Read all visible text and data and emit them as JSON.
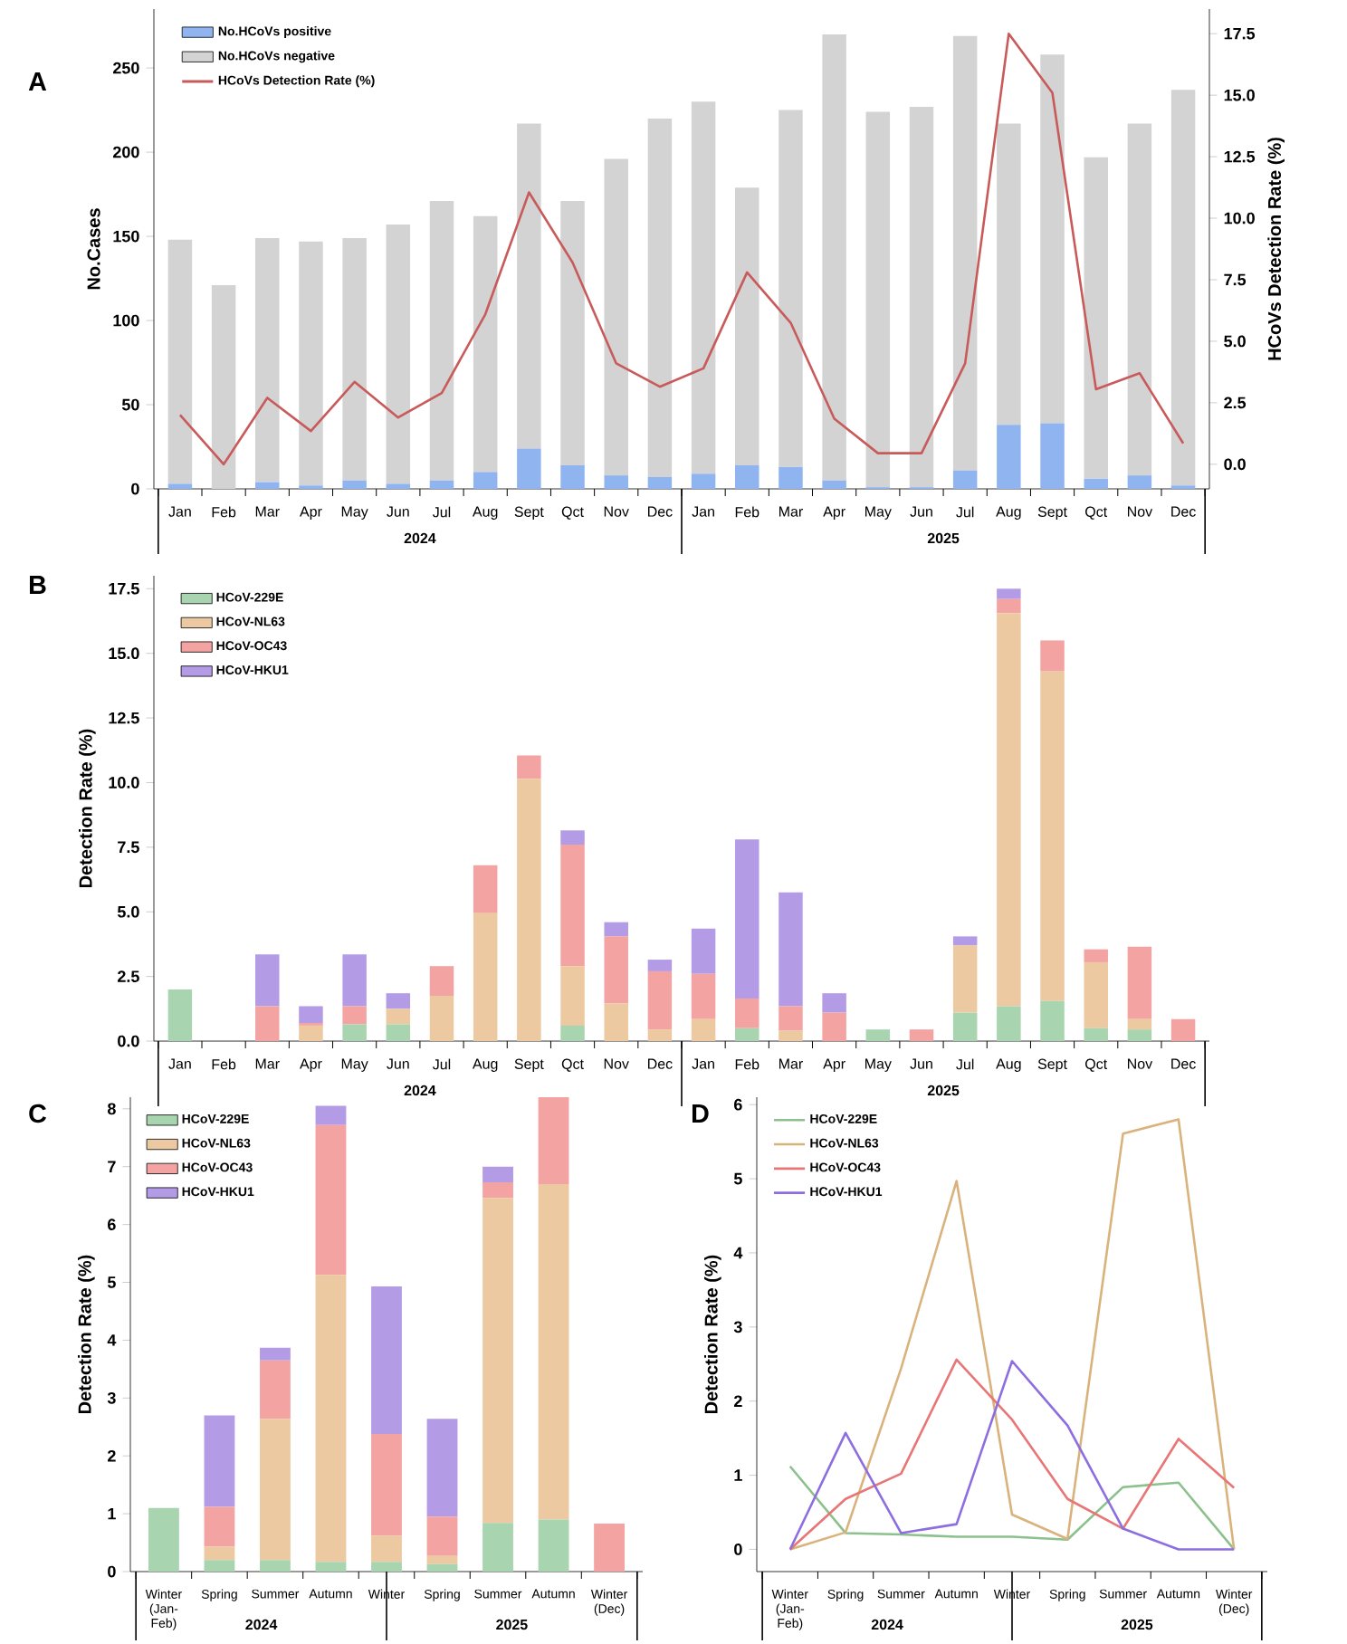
{
  "chart_data": [
    {
      "type": "bar",
      "title": "A",
      "ylabel": "No.Cases",
      "y2label": "HCoVs Detection Rate (%)",
      "stacked": true,
      "legend": "top left",
      "categories": [
        "Jan",
        "Feb",
        "Mar",
        "Apr",
        "May",
        "Jun",
        "Jul",
        "Aug",
        "Sept",
        "Qct",
        "Nov",
        "Dec",
        "Jan",
        "Feb",
        "Mar",
        "Apr",
        "May",
        "Jun",
        "Jul",
        "Aug",
        "Sept",
        "Qct",
        "Nov",
        "Dec"
      ],
      "series": [
        {
          "name": "No.HCoVs positive",
          "color": "#8fb4f0",
          "values": [
            3,
            0,
            4,
            2,
            5,
            3,
            5,
            10,
            24,
            14,
            8,
            7,
            9,
            14,
            13,
            5,
            1,
            1,
            11,
            38,
            39,
            6,
            8,
            2
          ]
        },
        {
          "name": "No.HCoVs negative",
          "color": "#d3d3d3",
          "values": [
            145,
            121,
            145,
            145,
            144,
            154,
            166,
            152,
            193,
            157,
            188,
            213,
            221,
            165,
            212,
            265,
            223,
            226,
            258,
            179,
            219,
            191,
            209,
            235
          ]
        },
        {
          "name": "HCoVs Detection Rate (%)",
          "type": "line",
          "axis": "y2",
          "color": "#c85a5a",
          "values": [
            2.0,
            0.0,
            2.7,
            1.35,
            3.35,
            1.9,
            2.9,
            6.1,
            11.05,
            8.2,
            4.1,
            3.15,
            3.9,
            7.8,
            5.75,
            1.85,
            0.45,
            0.45,
            4.1,
            17.5,
            15.1,
            3.05,
            3.7,
            0.85
          ]
        }
      ],
      "ylim": [
        0,
        285
      ],
      "yticks": [
        0,
        50,
        100,
        150,
        200,
        250
      ],
      "y2lim": [
        -1,
        18.5
      ],
      "y2ticks": [
        {
          "value": 0,
          "label": "0.0"
        },
        2.5,
        {
          "value": 5,
          "label": "5.0"
        },
        7.5,
        {
          "value": 10,
          "label": "10.0"
        },
        12.5,
        {
          "value": 15,
          "label": "15.0"
        },
        17.5
      ],
      "annotations": [
        "2024",
        "2025"
      ]
    },
    {
      "type": "bar",
      "title": "B",
      "ylabel": "Detection Rate (%)",
      "stacked": true,
      "legend": "top left",
      "categories": [
        "Jan",
        "Feb",
        "Mar",
        "Apr",
        "May",
        "Jun",
        "Jul",
        "Aug",
        "Sept",
        "Qct",
        "Nov",
        "Dec",
        "Jan",
        "Feb",
        "Mar",
        "Apr",
        "May",
        "Jun",
        "Jul",
        "Aug",
        "Sept",
        "Qct",
        "Nov",
        "Dec"
      ],
      "series": [
        {
          "name": "HCoV-229E",
          "color": "#a8d5b0",
          "values": [
            2.0,
            0,
            0,
            0,
            0.65,
            0.65,
            0,
            0,
            0,
            0.6,
            0,
            0,
            0,
            0.5,
            0,
            0,
            0.45,
            0,
            1.1,
            1.35,
            1.55,
            0.5,
            0.45,
            0
          ]
        },
        {
          "name": "HCoV-NL63",
          "color": "#ecc9a0",
          "values": [
            0,
            0,
            0,
            0.6,
            0,
            0.6,
            1.75,
            4.95,
            10.15,
            2.3,
            1.45,
            0.45,
            0.85,
            0,
            0.4,
            0,
            0,
            0,
            2.6,
            15.2,
            12.75,
            2.55,
            0.4,
            0
          ]
        },
        {
          "name": "HCoV-OC43",
          "color": "#f4a3a3",
          "values": [
            0,
            0,
            1.35,
            0.1,
            0.7,
            0,
            1.15,
            1.85,
            0.9,
            4.7,
            2.6,
            2.25,
            1.75,
            1.15,
            0.95,
            1.1,
            0,
            0.45,
            0,
            0.55,
            1.2,
            0.5,
            2.8,
            0.85
          ]
        },
        {
          "name": "HCoV-HKU1",
          "color": "#b49be6",
          "values": [
            0,
            0,
            2.0,
            0.65,
            2.0,
            0.6,
            0,
            0,
            0,
            0.55,
            0.55,
            0.45,
            1.75,
            6.15,
            4.4,
            0.75,
            0,
            0,
            0.35,
            0.4,
            0,
            0,
            0,
            0
          ]
        }
      ],
      "ylim": [
        0,
        18
      ],
      "yticks": [
        {
          "value": 0,
          "label": "0.0"
        },
        2.5,
        {
          "value": 5,
          "label": "5.0"
        },
        7.5,
        {
          "value": 10,
          "label": "10.0"
        },
        12.5,
        {
          "value": 15,
          "label": "15.0"
        },
        17.5
      ],
      "annotations": [
        "2024",
        "2025"
      ]
    },
    {
      "type": "bar",
      "title": "C",
      "ylabel": "Detection Rate (%)",
      "stacked": true,
      "legend": "top left",
      "categories": [
        "Winter (Jan-Feb)",
        "Spring",
        "Summer",
        "Autumn",
        "Winter",
        "Spring",
        "Summer",
        "Autumn",
        "Winter (Dec)"
      ],
      "series": [
        {
          "name": "HCoV-229E",
          "color": "#a8d5b0",
          "values": [
            1.1,
            0.2,
            0.2,
            0.17,
            0.17,
            0.13,
            0.84,
            0.9,
            0
          ]
        },
        {
          "name": "HCoV-NL63",
          "color": "#ecc9a0",
          "values": [
            0,
            0.23,
            2.44,
            4.96,
            0.45,
            0.14,
            5.62,
            5.8,
            0
          ]
        },
        {
          "name": "HCoV-OC43",
          "color": "#f4a3a3",
          "values": [
            0,
            0.69,
            1.01,
            2.59,
            1.76,
            0.68,
            0.27,
            1.5,
            0.83
          ]
        },
        {
          "name": "HCoV-HKU1",
          "color": "#b49be6",
          "values": [
            0,
            1.58,
            0.22,
            0.33,
            2.55,
            1.69,
            0.27,
            0,
            0
          ]
        }
      ],
      "ylim": [
        0,
        8.2
      ],
      "yticks": [
        0,
        1,
        2,
        3,
        4,
        5,
        6,
        7,
        8
      ],
      "annotations": [
        "2024",
        "2025"
      ]
    },
    {
      "type": "line",
      "title": "D",
      "ylabel": "Detection Rate (%)",
      "legend": "top left",
      "categories": [
        "Winter (Jan-Feb)",
        "Spring",
        "Summer",
        "Autumn",
        "Winter",
        "Spring",
        "Summer",
        "Autumn",
        "Winter (Dec)"
      ],
      "series": [
        {
          "name": "HCoV-229E",
          "color": "#8cc08c",
          "values": [
            1.12,
            0.22,
            0.2,
            0.17,
            0.17,
            0.13,
            0.84,
            0.9,
            0
          ]
        },
        {
          "name": "HCoV-NL63",
          "color": "#d9b27c",
          "values": [
            0,
            0.23,
            2.44,
            4.97,
            0.47,
            0.14,
            5.61,
            5.8,
            0
          ]
        },
        {
          "name": "HCoV-OC43",
          "color": "#e87676",
          "values": [
            0,
            0.68,
            1.02,
            2.56,
            1.75,
            0.68,
            0.28,
            1.49,
            0.83
          ]
        },
        {
          "name": "HCoV-HKU1",
          "color": "#8c6ee0",
          "values": [
            0,
            1.57,
            0.22,
            0.34,
            2.54,
            1.67,
            0.28,
            0,
            0
          ]
        }
      ],
      "ylim": [
        -0.3,
        6.1
      ],
      "yticks": [
        0,
        1,
        2,
        3,
        4,
        5,
        6
      ],
      "annotations": [
        "2024",
        "2025"
      ]
    }
  ]
}
